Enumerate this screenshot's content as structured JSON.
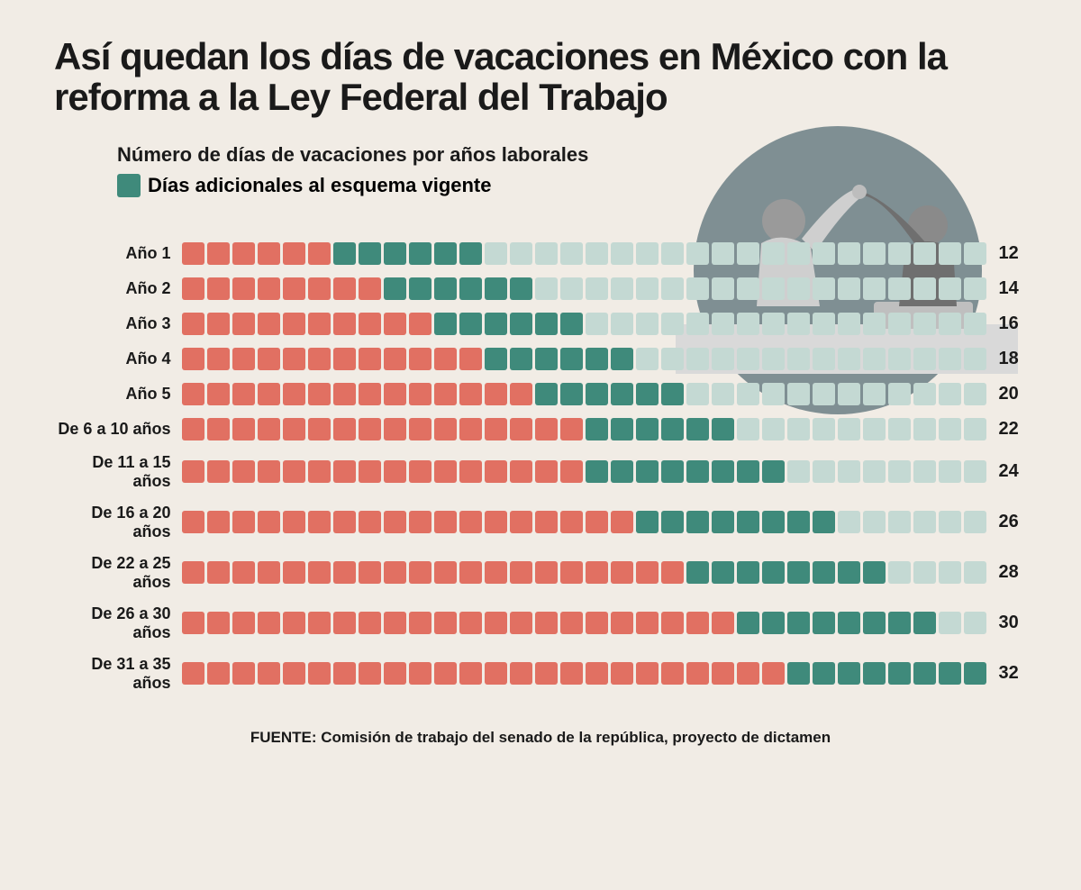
{
  "background_color": "#f1ece5",
  "title": "Así quedan los días de vacaciones en México con la reforma a la Ley Federal del Trabajo",
  "title_color": "#1a1a1a",
  "title_fontsize": 42,
  "subtitle": "Número de días de vacaciones por años laborales",
  "subtitle_fontsize": 22,
  "subtitle_color": "#1a1a1a",
  "legend_label": "Días adicionales al esquema vigente",
  "legend_swatch_color": "#3f8a7b",
  "chart": {
    "type": "unit-bar",
    "max_cells": 32,
    "cell_size": 25,
    "cell_radius": 3,
    "cell_gap": 3,
    "colors": {
      "existing": "#e17062",
      "additional": "#3f8a7b",
      "empty": "#c4d9d3"
    },
    "label_fontsize": 18,
    "value_fontsize": 20,
    "text_color": "#1a1a1a",
    "rows": [
      {
        "label": "Año 1",
        "existing": 6,
        "additional": 6,
        "total": 12
      },
      {
        "label": "Año 2",
        "existing": 8,
        "additional": 6,
        "total": 14
      },
      {
        "label": "Año 3",
        "existing": 10,
        "additional": 6,
        "total": 16
      },
      {
        "label": "Año 4",
        "existing": 12,
        "additional": 6,
        "total": 18
      },
      {
        "label": "Año 5",
        "existing": 14,
        "additional": 6,
        "total": 20
      },
      {
        "label": "De 6 a 10 años",
        "existing": 16,
        "additional": 6,
        "total": 22
      },
      {
        "label": "De 11 a 15 años",
        "existing": 16,
        "additional": 8,
        "total": 24
      },
      {
        "label": "De 16 a 20 años",
        "existing": 18,
        "additional": 8,
        "total": 26
      },
      {
        "label": "De 22 a 25 años",
        "existing": 20,
        "additional": 8,
        "total": 28
      },
      {
        "label": "De 26 a 30 años",
        "existing": 22,
        "additional": 8,
        "total": 30
      },
      {
        "label": "De 31 a 35 años",
        "existing": 24,
        "additional": 8,
        "total": 32
      }
    ]
  },
  "source_prefix": "FUENTE: ",
  "source_text": "Comisión de trabajo del senado de la república, proyecto de dictamen",
  "source_fontsize": 17,
  "source_color": "#1a1a1a",
  "illustration": {
    "circle_color": "#6b7f85",
    "desc": "two coworkers high-five at desk"
  }
}
